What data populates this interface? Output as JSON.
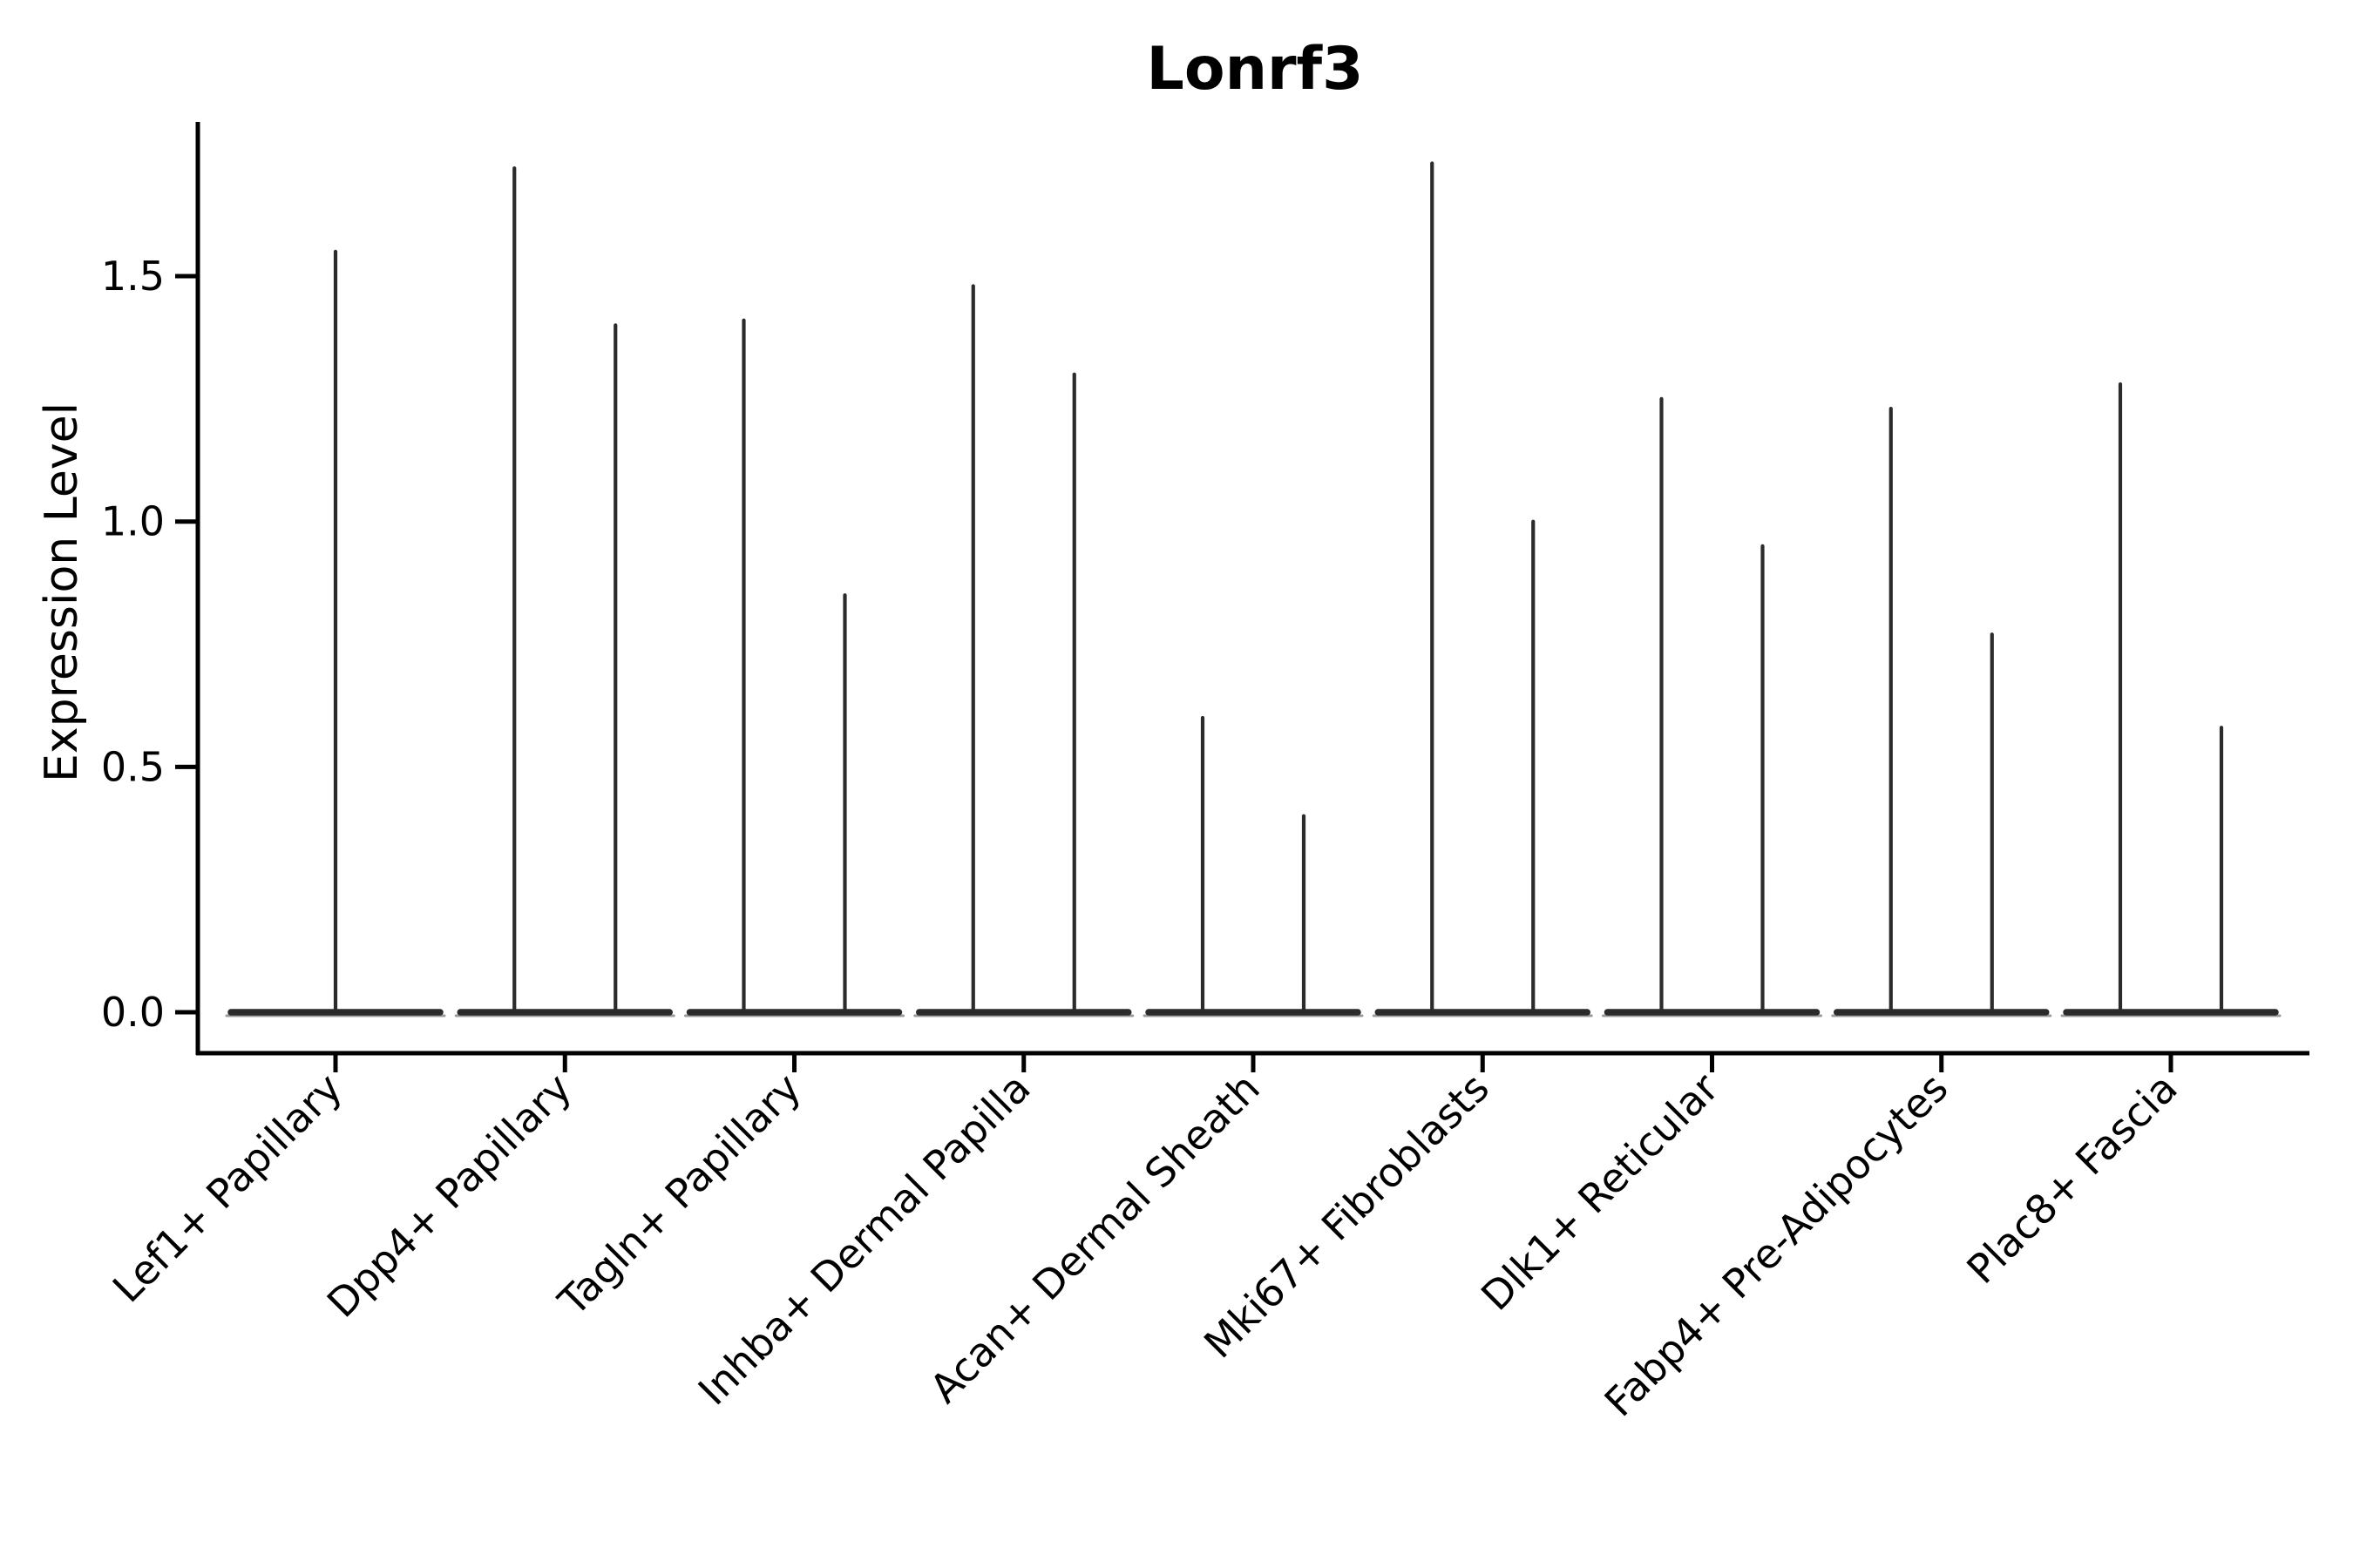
{
  "chart_data": {
    "type": "violin",
    "title": "Lonrf3",
    "ylabel": "Expression Level",
    "xlabel": "",
    "yticks": [
      0.0,
      0.5,
      1.0,
      1.5
    ],
    "ytick_labels": [
      "0.0",
      "0.5",
      "1.0",
      "1.5"
    ],
    "ylim": [
      -0.08,
      1.81
    ],
    "grid": false,
    "legend": null,
    "baseline_value": 0.0,
    "categories": [
      "Lef1+ Papillary",
      "Dpp4+ Papillary",
      "Tagln+ Papillary",
      "Inhba+ Dermal Papilla",
      "Acan+ Dermal Sheath",
      "Mki67+ Fibroblasts",
      "Dlk1+ Reticular",
      "Fabp4+ Pre-Adipocytes",
      "Plac8+ Fascia"
    ],
    "violins": [
      {
        "category": "Lef1+ Papillary",
        "maxima": [
          1.55
        ]
      },
      {
        "category": "Dpp4+ Papillary",
        "maxima": [
          1.72,
          1.4
        ]
      },
      {
        "category": "Tagln+ Papillary",
        "maxima": [
          1.41,
          0.85
        ]
      },
      {
        "category": "Inhba+ Dermal Papilla",
        "maxima": [
          1.48,
          1.3
        ]
      },
      {
        "category": "Acan+ Dermal Sheath",
        "maxima": [
          0.6,
          0.4
        ]
      },
      {
        "category": "Mki67+ Fibroblasts",
        "maxima": [
          1.73,
          1.0
        ]
      },
      {
        "category": "Dlk1+ Reticular",
        "maxima": [
          1.25,
          0.95
        ]
      },
      {
        "category": "Fabp4+ Pre-Adipocytes",
        "maxima": [
          1.23,
          0.77
        ]
      },
      {
        "category": "Plac8+ Fascia",
        "maxima": [
          1.28,
          0.58
        ]
      }
    ],
    "colors": {
      "violin": "#2b2b2b",
      "violin_halo": "#9a9a9a",
      "axis": "#000000",
      "text": "#000000",
      "background": "#ffffff"
    }
  }
}
